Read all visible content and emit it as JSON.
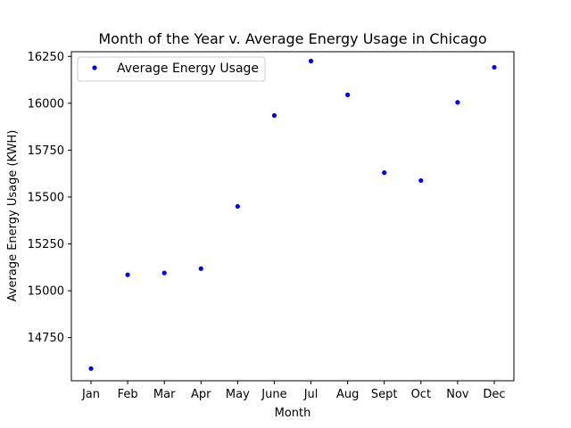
{
  "chart_data": {
    "type": "scatter",
    "title": "Month of the Year v. Average Energy Usage in Chicago",
    "xlabel": "Month",
    "ylabel": "Average Energy Usage (KWH)",
    "categories": [
      "Jan",
      "Feb",
      "Mar",
      "Apr",
      "May",
      "June",
      "Jul",
      "Aug",
      "Sept",
      "Oct",
      "Nov",
      "Dec"
    ],
    "series": [
      {
        "name": "Average Energy Usage",
        "values": [
          14585,
          15085,
          15095,
          15118,
          15450,
          15935,
          16225,
          16045,
          15630,
          15588,
          16005,
          16192
        ]
      }
    ],
    "yticks": [
      14750,
      15000,
      15250,
      15500,
      15750,
      16000,
      16250
    ],
    "ylim": [
      14520,
      16275
    ],
    "grid": false,
    "legend_position": "top-left",
    "colors": {
      "marker": "#0000ff",
      "axes": "#000000",
      "background": "#ffffff"
    }
  }
}
